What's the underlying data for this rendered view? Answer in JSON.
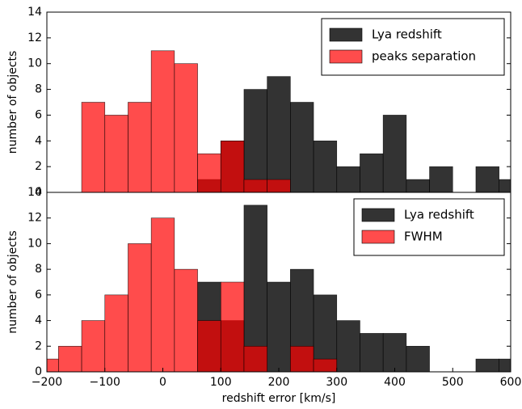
{
  "chart_data": [
    {
      "type": "histogram",
      "ylabel": "number of objects",
      "bins": [
        -220,
        -180,
        -140,
        -100,
        -60,
        -20,
        20,
        60,
        100,
        140,
        180,
        220,
        260,
        300,
        340,
        380,
        420,
        460,
        500,
        540,
        580,
        620
      ],
      "xlim": [
        -200,
        600
      ],
      "ylim": [
        0,
        14
      ],
      "yticks": [
        0,
        2,
        4,
        6,
        8,
        10,
        12,
        14
      ],
      "legend": "upper right",
      "series": [
        {
          "name": "Lya redshift",
          "color": "#000000",
          "values": [
            0,
            0,
            0,
            0,
            0,
            0,
            0,
            1,
            4,
            8,
            9,
            7,
            4,
            2,
            3,
            6,
            1,
            2,
            0,
            2,
            1
          ]
        },
        {
          "name": "peaks separation",
          "color": "#ff0000",
          "values": [
            0,
            0,
            7,
            6,
            7,
            11,
            10,
            3,
            4,
            1,
            1,
            0,
            0,
            0,
            0,
            0,
            0,
            0,
            0,
            0,
            0
          ]
        }
      ]
    },
    {
      "type": "histogram",
      "ylabel": "number of objects",
      "xlabel": "redshift error [km/s]",
      "bins": [
        -220,
        -180,
        -140,
        -100,
        -60,
        -20,
        20,
        60,
        100,
        140,
        180,
        220,
        260,
        300,
        340,
        380,
        420,
        460,
        500,
        540,
        580,
        620
      ],
      "xlim": [
        -200,
        600
      ],
      "xticks": [
        {
          "value": -200,
          "label": "−200"
        },
        {
          "value": -100,
          "label": "−100"
        },
        0,
        100,
        200,
        300,
        400,
        500,
        600
      ],
      "ylim": [
        0,
        14
      ],
      "yticks": [
        0,
        2,
        4,
        6,
        8,
        10,
        12,
        14
      ],
      "legend": "upper right",
      "series": [
        {
          "name": "Lya redshift",
          "color": "#000000",
          "values": [
            0,
            0,
            0,
            0,
            0,
            0,
            0,
            7,
            4,
            13,
            7,
            8,
            6,
            4,
            3,
            3,
            2,
            0,
            0,
            1,
            1
          ]
        },
        {
          "name": "FWHM",
          "color": "#ff0000",
          "values": [
            1,
            2,
            4,
            6,
            10,
            12,
            8,
            4,
            7,
            2,
            0,
            2,
            1,
            0,
            0,
            0,
            0,
            0,
            0,
            0,
            0
          ]
        }
      ]
    }
  ]
}
